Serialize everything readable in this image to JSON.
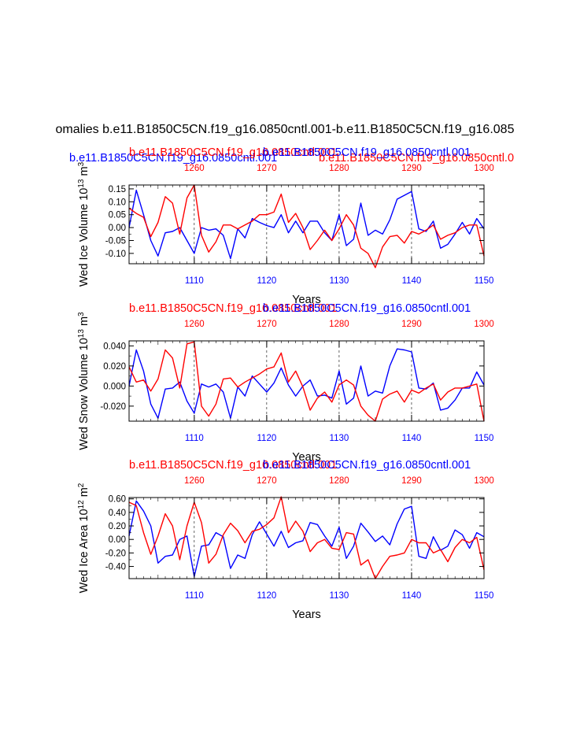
{
  "figure": {
    "main_title": "omalies b.e11.B1850C5CN.f19_g16.0850cntl.001-b.e11.B1850C5CN.f19_g16.085",
    "top_overlap_blue": "b.e11.B1850C5CN.f19_g16.0850cntl.001",
    "top_overlap_red": "b.e11.B1850C5CN.f19_g16.0850cntl.0"
  },
  "colors": {
    "series_a": "#0000ff",
    "series_b": "#ff0000",
    "axis": "#000000"
  },
  "chart_data": [
    {
      "type": "line",
      "ylabel_base": "Wed Ice Volume 10",
      "ylabel_exp": "13",
      "ylabel_unit": " m",
      "ylabel_unit_exp": "3",
      "xlabel": "Years",
      "red_title": "b.e11.B1850C5CN.f19_g16.0850cntl.001",
      "blue_title": "b.e11.B1850C5CN.f19_g16.0850cntl.001",
      "bottom_axis": {
        "range": [
          1101,
          1150
        ],
        "ticks": [
          1110,
          1120,
          1130,
          1140,
          1150
        ],
        "labels": [
          "1110",
          "1120",
          "1130",
          "1140",
          "1150"
        ]
      },
      "top_axis": {
        "ticks": [
          1260,
          1270,
          1280,
          1290,
          1300
        ],
        "labels": [
          "1260",
          "1270",
          "1280",
          "1290",
          "1300"
        ]
      },
      "ylim": [
        -0.14,
        0.165
      ],
      "yticks": [
        0.15,
        0.1,
        0.05,
        0.0,
        -0.05,
        -0.1
      ],
      "ytick_labels": [
        "0.15",
        "0.10",
        "0.05",
        "0.00",
        "-0.05",
        "-0.10"
      ],
      "dashed_gridlines_at": [
        1110,
        1120,
        1130,
        1140
      ],
      "series": [
        {
          "name": "b.e11.B1850C5CN.f19_g16.0850cntl.001",
          "color": "blue",
          "x": [
            1101,
            1102,
            1103,
            1104,
            1105,
            1106,
            1107,
            1108,
            1109,
            1110,
            1111,
            1112,
            1113,
            1114,
            1115,
            1116,
            1117,
            1118,
            1119,
            1120,
            1121,
            1122,
            1123,
            1124,
            1125,
            1126,
            1127,
            1128,
            1129,
            1130,
            1131,
            1132,
            1133,
            1134,
            1135,
            1136,
            1137,
            1138,
            1139,
            1140,
            1141,
            1142,
            1143,
            1144,
            1145,
            1146,
            1147,
            1148,
            1149,
            1150
          ],
          "values": [
            0.0,
            0.145,
            0.05,
            -0.05,
            -0.11,
            -0.02,
            -0.015,
            0.0,
            -0.05,
            -0.1,
            0.0,
            -0.01,
            -0.005,
            -0.03,
            -0.12,
            -0.005,
            -0.04,
            0.035,
            0.02,
            0.008,
            0.0,
            0.05,
            -0.02,
            0.025,
            -0.02,
            0.025,
            0.025,
            -0.02,
            -0.05,
            0.05,
            -0.07,
            -0.045,
            0.095,
            -0.03,
            -0.01,
            -0.025,
            0.03,
            0.11,
            0.125,
            0.14,
            -0.005,
            -0.015,
            0.025,
            -0.08,
            -0.065,
            -0.025,
            0.02,
            -0.025,
            0.035,
            -0.005
          ]
        },
        {
          "name": "b.e11.B1850C5CN.f19_g16.0850cntl.0",
          "color": "red",
          "x": [
            1101,
            1102,
            1103,
            1104,
            1105,
            1106,
            1107,
            1108,
            1109,
            1110,
            1111,
            1112,
            1113,
            1114,
            1115,
            1116,
            1117,
            1118,
            1119,
            1120,
            1121,
            1122,
            1123,
            1124,
            1125,
            1126,
            1127,
            1128,
            1129,
            1130,
            1131,
            1132,
            1133,
            1134,
            1135,
            1136,
            1137,
            1138,
            1139,
            1140,
            1141,
            1142,
            1143,
            1144,
            1145,
            1146,
            1147,
            1148,
            1149,
            1150
          ],
          "values": [
            0.075,
            0.055,
            0.04,
            -0.035,
            0.02,
            0.12,
            0.095,
            -0.025,
            0.115,
            0.165,
            -0.03,
            -0.095,
            -0.055,
            0.01,
            0.01,
            -0.005,
            0.01,
            0.025,
            0.05,
            0.05,
            0.06,
            0.13,
            0.02,
            0.055,
            0.0,
            -0.085,
            -0.05,
            -0.01,
            -0.05,
            -0.005,
            0.05,
            0.01,
            -0.08,
            -0.1,
            -0.155,
            -0.075,
            -0.035,
            -0.03,
            -0.06,
            -0.015,
            -0.025,
            -0.01,
            0.01,
            -0.045,
            -0.03,
            -0.02,
            0.0,
            0.01,
            0.01,
            -0.11
          ]
        }
      ]
    },
    {
      "type": "line",
      "ylabel_base": "Wed Snow Volume 10",
      "ylabel_exp": "13",
      "ylabel_unit": " m",
      "ylabel_unit_exp": "3",
      "xlabel": "Years",
      "red_title": "b.e11.B1850C5CN.f19_g16.0850cntl.001",
      "blue_title": "b.e11.B1850C5CN.f19_g16.0850cntl.001",
      "bottom_axis": {
        "range": [
          1101,
          1150
        ],
        "ticks": [
          1110,
          1120,
          1130,
          1140,
          1150
        ],
        "labels": [
          "1110",
          "1120",
          "1130",
          "1140",
          "1150"
        ]
      },
      "top_axis": {
        "ticks": [
          1260,
          1270,
          1280,
          1290,
          1300
        ],
        "labels": [
          "1260",
          "1270",
          "1280",
          "1290",
          "1300"
        ]
      },
      "ylim": [
        -0.035,
        0.045
      ],
      "yticks": [
        0.04,
        0.02,
        0.0,
        -0.02
      ],
      "ytick_labels": [
        "0.040",
        "0.020",
        "0.000",
        "-0.020"
      ],
      "dashed_gridlines_at": [
        1110,
        1120,
        1130,
        1140
      ],
      "series": [
        {
          "name": "b.e11.B1850C5CN.f19_g16.0850cntl.001",
          "color": "blue",
          "x": [
            1101,
            1102,
            1103,
            1104,
            1105,
            1106,
            1107,
            1108,
            1109,
            1110,
            1111,
            1112,
            1113,
            1114,
            1115,
            1116,
            1117,
            1118,
            1119,
            1120,
            1121,
            1122,
            1123,
            1124,
            1125,
            1126,
            1127,
            1128,
            1129,
            1130,
            1131,
            1132,
            1133,
            1134,
            1135,
            1136,
            1137,
            1138,
            1139,
            1140,
            1141,
            1142,
            1143,
            1144,
            1145,
            1146,
            1147,
            1148,
            1149,
            1150
          ],
          "values": [
            0.0,
            0.036,
            0.015,
            -0.018,
            -0.032,
            -0.003,
            -0.002,
            0.004,
            -0.015,
            -0.027,
            0.002,
            -0.001,
            0.002,
            -0.006,
            -0.032,
            -0.001,
            -0.01,
            0.01,
            0.002,
            -0.006,
            0.003,
            0.018,
            0.001,
            -0.01,
            0.0,
            0.006,
            -0.01,
            -0.009,
            -0.012,
            0.015,
            -0.018,
            -0.012,
            0.02,
            -0.01,
            -0.005,
            -0.007,
            0.02,
            0.037,
            0.036,
            0.034,
            -0.002,
            -0.003,
            0.003,
            -0.024,
            -0.022,
            -0.014,
            -0.002,
            -0.002,
            0.014,
            0.001
          ]
        },
        {
          "name": "b.e11.B1850C5CN.f19_g16.0850cntl.0",
          "color": "red",
          "x": [
            1101,
            1102,
            1103,
            1104,
            1105,
            1106,
            1107,
            1108,
            1109,
            1110,
            1111,
            1112,
            1113,
            1114,
            1115,
            1116,
            1117,
            1118,
            1119,
            1120,
            1121,
            1122,
            1123,
            1124,
            1125,
            1126,
            1127,
            1128,
            1129,
            1130,
            1131,
            1132,
            1133,
            1134,
            1135,
            1136,
            1137,
            1138,
            1139,
            1140,
            1141,
            1142,
            1143,
            1144,
            1145,
            1146,
            1147,
            1148,
            1149,
            1150
          ],
          "values": [
            0.019,
            0.004,
            0.006,
            -0.005,
            0.007,
            0.036,
            0.028,
            -0.002,
            0.042,
            0.044,
            -0.02,
            -0.03,
            -0.018,
            0.007,
            0.008,
            -0.001,
            0.004,
            0.008,
            0.012,
            0.017,
            0.019,
            0.033,
            0.004,
            0.015,
            -0.001,
            -0.024,
            -0.012,
            -0.006,
            -0.016,
            0.001,
            0.006,
            0.001,
            -0.02,
            -0.029,
            -0.035,
            -0.013,
            -0.008,
            -0.005,
            -0.016,
            -0.004,
            -0.007,
            -0.002,
            0.002,
            -0.014,
            -0.006,
            -0.002,
            -0.002,
            0.0,
            0.002,
            -0.035
          ]
        }
      ]
    },
    {
      "type": "line",
      "ylabel_base": "Wed Ice Area 10",
      "ylabel_exp": "12",
      "ylabel_unit": " m",
      "ylabel_unit_exp": "2",
      "xlabel": "Years",
      "red_title": "b.e11.B1850C5CN.f19_g16.0850cntl.001",
      "blue_title": "b.e11.B1850C5CN.f19_g16.0850cntl.001",
      "bottom_axis": {
        "range": [
          1101,
          1150
        ],
        "ticks": [
          1110,
          1120,
          1130,
          1140,
          1150
        ],
        "labels": [
          "1110",
          "1120",
          "1130",
          "1140",
          "1150"
        ]
      },
      "top_axis": {
        "ticks": [
          1260,
          1270,
          1280,
          1290,
          1300
        ],
        "labels": [
          "1260",
          "1270",
          "1280",
          "1290",
          "1300"
        ]
      },
      "ylim": [
        -0.58,
        0.62
      ],
      "yticks": [
        0.6,
        0.4,
        0.2,
        0.0,
        -0.2,
        -0.4
      ],
      "ytick_labels": [
        "0.60",
        "0.40",
        "0.20",
        "0.00",
        "-0.20",
        "-0.40"
      ],
      "dashed_gridlines_at": [
        1110,
        1120,
        1130,
        1140
      ],
      "series": [
        {
          "name": "b.e11.B1850C5CN.f19_g16.0850cntl.001",
          "color": "blue",
          "x": [
            1101,
            1102,
            1103,
            1104,
            1105,
            1106,
            1107,
            1108,
            1109,
            1110,
            1111,
            1112,
            1113,
            1114,
            1115,
            1116,
            1117,
            1118,
            1119,
            1120,
            1121,
            1122,
            1123,
            1124,
            1125,
            1126,
            1127,
            1128,
            1129,
            1130,
            1131,
            1132,
            1133,
            1134,
            1135,
            1136,
            1137,
            1138,
            1139,
            1140,
            1141,
            1142,
            1143,
            1144,
            1145,
            1146,
            1147,
            1148,
            1149,
            1150
          ],
          "values": [
            0.05,
            0.57,
            0.42,
            0.2,
            -0.35,
            -0.25,
            -0.23,
            0.0,
            0.05,
            -0.55,
            -0.1,
            -0.08,
            0.1,
            0.04,
            -0.43,
            -0.23,
            -0.28,
            0.07,
            0.26,
            0.08,
            -0.1,
            0.12,
            -0.12,
            -0.05,
            -0.02,
            0.25,
            0.22,
            0.05,
            -0.1,
            0.18,
            -0.28,
            -0.1,
            0.24,
            0.11,
            -0.03,
            0.05,
            -0.08,
            0.23,
            0.45,
            0.49,
            -0.25,
            -0.28,
            0.04,
            -0.16,
            -0.1,
            0.14,
            0.07,
            -0.13,
            0.1,
            0.04
          ]
        },
        {
          "name": "b.e11.B1850C5CN.f19_g16.0850cntl.0",
          "color": "red",
          "x": [
            1101,
            1102,
            1103,
            1104,
            1105,
            1106,
            1107,
            1108,
            1109,
            1110,
            1111,
            1112,
            1113,
            1114,
            1115,
            1116,
            1117,
            1118,
            1119,
            1120,
            1121,
            1122,
            1123,
            1124,
            1125,
            1126,
            1127,
            1128,
            1129,
            1130,
            1131,
            1132,
            1133,
            1134,
            1135,
            1136,
            1137,
            1138,
            1139,
            1140,
            1141,
            1142,
            1143,
            1144,
            1145,
            1146,
            1147,
            1148,
            1149,
            1150
          ],
          "values": [
            0.55,
            0.5,
            0.1,
            -0.22,
            0.05,
            0.38,
            0.2,
            -0.3,
            0.2,
            0.55,
            0.25,
            -0.35,
            -0.22,
            0.07,
            0.24,
            0.13,
            -0.05,
            0.12,
            0.15,
            0.22,
            0.32,
            0.63,
            0.1,
            0.27,
            0.12,
            -0.18,
            -0.05,
            0.0,
            -0.13,
            -0.15,
            0.1,
            0.08,
            -0.38,
            -0.3,
            -0.58,
            -0.4,
            -0.25,
            -0.23,
            -0.2,
            0.0,
            -0.05,
            -0.05,
            -0.2,
            -0.15,
            -0.33,
            -0.12,
            0.0,
            -0.05,
            0.03,
            -0.45
          ]
        }
      ]
    }
  ]
}
